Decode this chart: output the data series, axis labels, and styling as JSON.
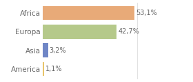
{
  "categories": [
    "America",
    "Asia",
    "Europa",
    "Africa"
  ],
  "values": [
    1.1,
    3.2,
    42.7,
    53.1
  ],
  "labels": [
    "1,1%",
    "3,2%",
    "42,7%",
    "53,1%"
  ],
  "bar_colors": [
    "#e8c46a",
    "#6f86c6",
    "#b5c98a",
    "#e8aa78"
  ],
  "background_color": "#ffffff",
  "xlim": [
    0,
    70
  ],
  "label_fontsize": 7,
  "tick_fontsize": 7.5,
  "tick_color": "#666666"
}
